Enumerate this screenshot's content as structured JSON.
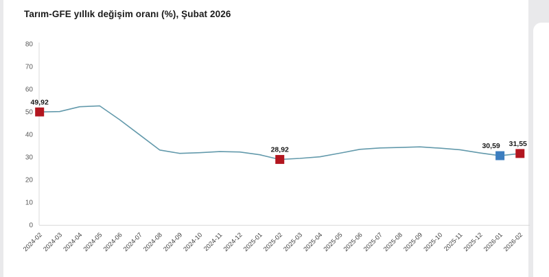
{
  "page": {
    "title": "Tarım-GFE yıllık değişim oranı (%), Şubat 2026"
  },
  "chart_data": {
    "type": "line",
    "title": "Tarım-GFE yıllık değişim oranı (%), Şubat 2026",
    "categories": [
      "2024-02",
      "2024-03",
      "2024-04",
      "2024-05",
      "2024-06",
      "2024-07",
      "2024-08",
      "2024-09",
      "2024-10",
      "2024-11",
      "2024-12",
      "2025-01",
      "2025-02",
      "2025-03",
      "2025-04",
      "2025-05",
      "2025-06",
      "2025-07",
      "2025-08",
      "2025-09",
      "2025-10",
      "2025-11",
      "2025-12",
      "2026-01",
      "2026-02"
    ],
    "values": [
      49.92,
      50.1,
      52.2,
      52.6,
      46.5,
      39.8,
      33.1,
      31.6,
      31.9,
      32.4,
      32.2,
      31.0,
      28.92,
      29.4,
      30.1,
      31.7,
      33.4,
      34.0,
      34.2,
      34.5,
      33.9,
      33.2,
      31.8,
      30.59,
      31.55
    ],
    "ylim": [
      0,
      80
    ],
    "yticks": [
      0,
      10,
      20,
      30,
      40,
      50,
      60,
      70,
      80
    ],
    "grid": false,
    "legend": "none",
    "line_color": "#6299ab",
    "axis_color": "#d9d9d9",
    "highlight_red": "#b2161f",
    "highlight_blue": "#3c7ec0",
    "highlighted_points": [
      {
        "category": "2024-02",
        "value": 49.92,
        "label": "49,92",
        "marker_color": "#b2161f"
      },
      {
        "category": "2025-02",
        "value": 28.92,
        "label": "28,92",
        "marker_color": "#b2161f"
      },
      {
        "category": "2026-01",
        "value": 30.59,
        "label": "30,59",
        "marker_color": "#3c7ec0"
      },
      {
        "category": "2026-02",
        "value": 31.55,
        "label": "31,55",
        "marker_color": "#b2161f"
      }
    ]
  }
}
